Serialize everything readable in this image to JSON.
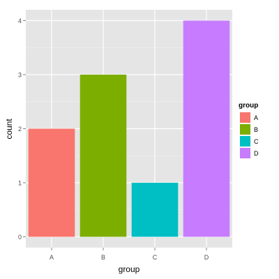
{
  "chart_data": {
    "type": "bar",
    "title": "",
    "xlabel": "group",
    "ylabel": "count",
    "categories": [
      "A",
      "B",
      "C",
      "D"
    ],
    "values": [
      2,
      3,
      1,
      4
    ],
    "colors": [
      "#F8766D",
      "#7CAE00",
      "#00BFC4",
      "#C77CFF"
    ],
    "ylim": [
      -0.2,
      4.2
    ],
    "yticks": [
      0,
      1,
      2,
      3,
      4
    ],
    "grid": true,
    "panel_background": "#E5E5E5",
    "gridline_color": "#FFFFFF",
    "legend": {
      "title": "group",
      "position": "right",
      "entries": [
        "A",
        "B",
        "C",
        "D"
      ]
    }
  }
}
